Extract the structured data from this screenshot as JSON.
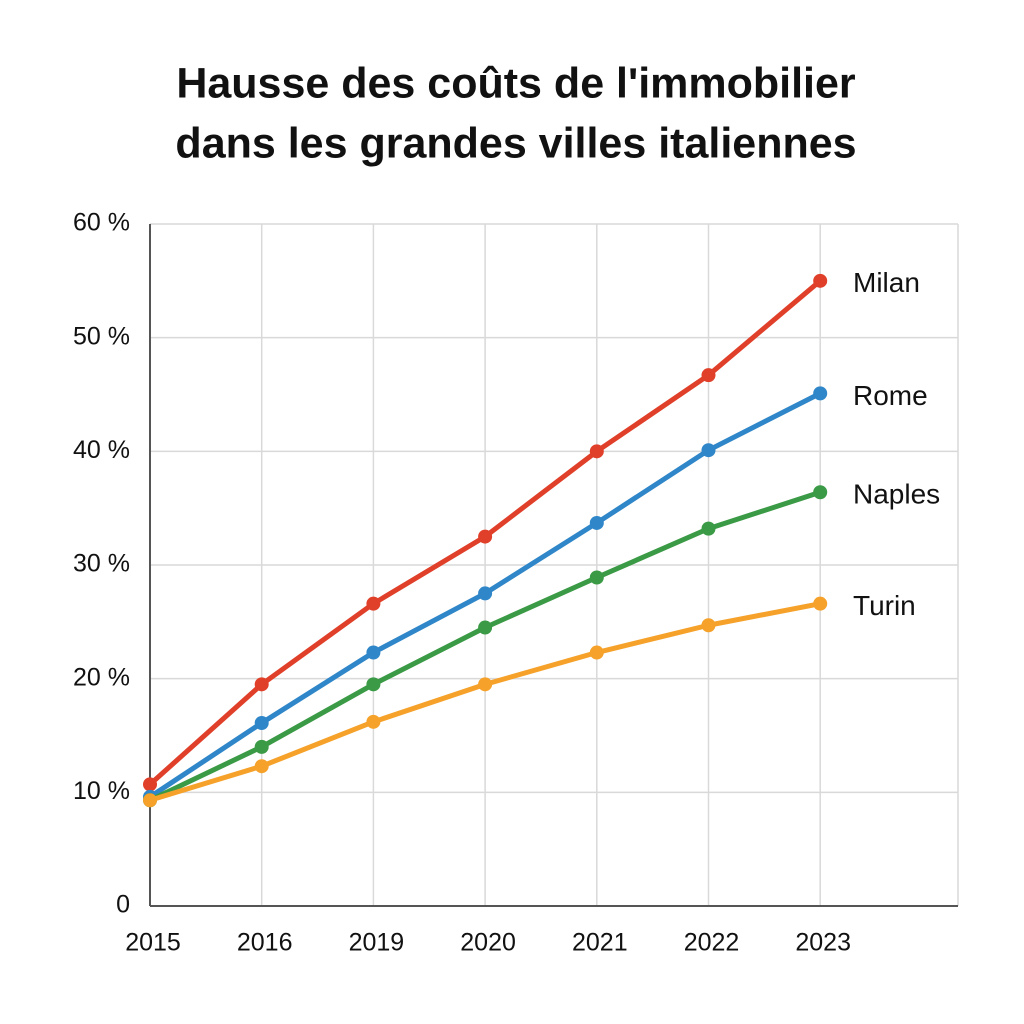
{
  "chart_data": {
    "type": "line",
    "title": [
      "Hausse des coûts de l'immobilier",
      "dans les grandes villes italiennes"
    ],
    "categories": [
      "2015",
      "2016",
      "2019",
      "2020",
      "2021",
      "2022",
      "2023"
    ],
    "series": [
      {
        "name": "Milan",
        "color": "#e0402a",
        "values": [
          10.7,
          19.5,
          26.6,
          32.5,
          40.0,
          46.7,
          55.0
        ]
      },
      {
        "name": "Rome",
        "color": "#2f86c8",
        "values": [
          9.6,
          16.1,
          22.3,
          27.5,
          33.7,
          40.1,
          45.1
        ]
      },
      {
        "name": "Naples",
        "color": "#3a9a45",
        "values": [
          9.3,
          14.0,
          19.5,
          24.5,
          28.9,
          33.2,
          36.4
        ]
      },
      {
        "name": "Turin",
        "color": "#f5a12a",
        "values": [
          9.3,
          12.3,
          16.2,
          19.5,
          22.3,
          24.7,
          26.6
        ]
      }
    ],
    "ylim": [
      0,
      60
    ],
    "yticks": [
      0,
      {
        "value": 10,
        "label": "10 %"
      },
      {
        "value": 20,
        "label": "20 %"
      },
      {
        "value": 30,
        "label": "30 %"
      },
      {
        "value": 40,
        "label": "40 %"
      },
      {
        "value": 50,
        "label": "50 %"
      },
      {
        "value": 60,
        "label": "60 %"
      }
    ],
    "grid": true
  }
}
